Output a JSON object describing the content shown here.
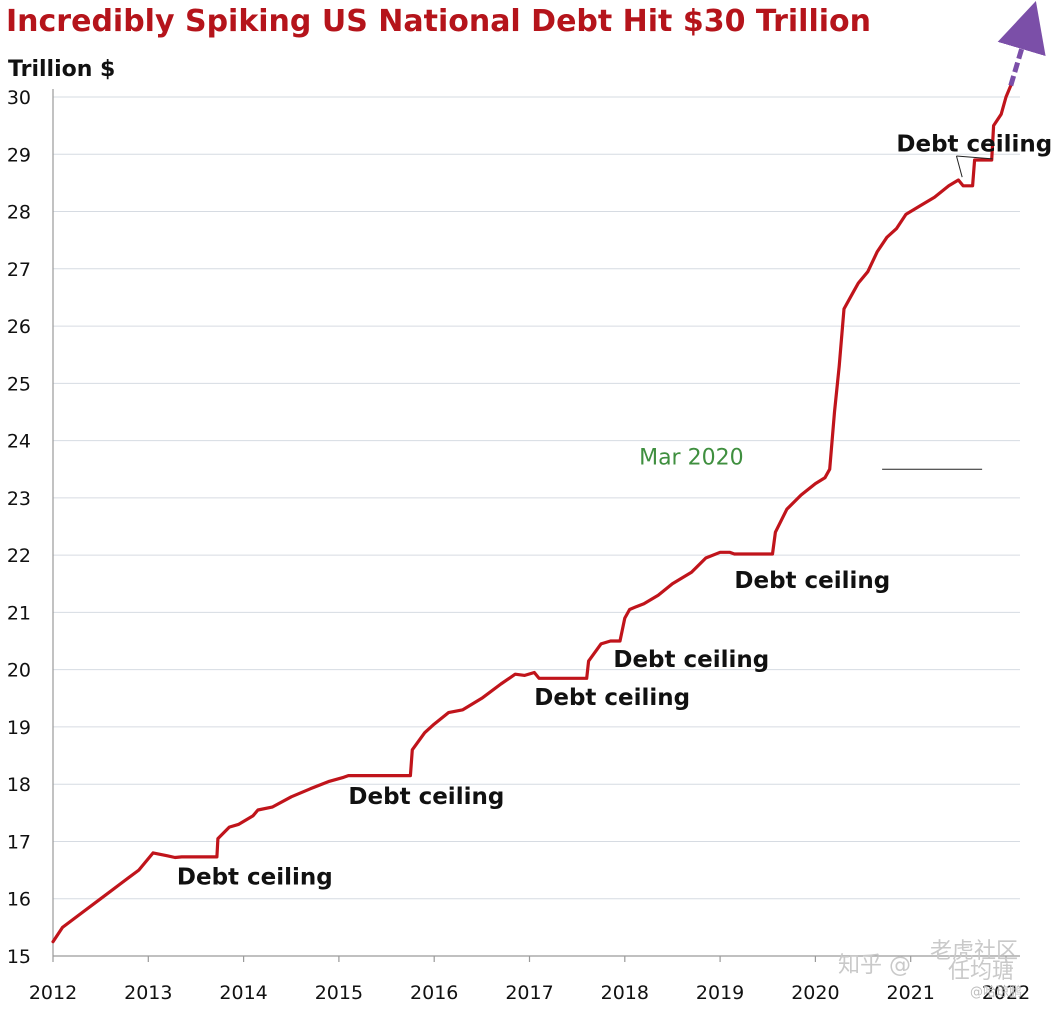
{
  "chart_data": {
    "type": "line",
    "title": "Incredibly Spiking US National Debt Hit $30 Trillion",
    "ylabel": "Trillion $",
    "xlabel": "",
    "ylim": [
      15,
      30
    ],
    "xlim": [
      2012,
      2022
    ],
    "y_ticks": [
      "15",
      "16",
      "17",
      "18",
      "19",
      "20",
      "21",
      "22",
      "23",
      "24",
      "25",
      "26",
      "27",
      "28",
      "29",
      "30"
    ],
    "x_ticks": [
      "2012",
      "2013",
      "2014",
      "2015",
      "2016",
      "2017",
      "2018",
      "2019",
      "2020",
      "2021",
      "2022"
    ],
    "grid": true,
    "line_color": "#c0141b",
    "series": [
      {
        "name": "US National Debt",
        "x": [
          2012.0,
          2012.1,
          2012.3,
          2012.5,
          2012.7,
          2012.9,
          2013.05,
          2013.2,
          2013.28,
          2013.35,
          2013.72,
          2013.73,
          2013.85,
          2013.95,
          2014.1,
          2014.15,
          2014.3,
          2014.5,
          2014.7,
          2014.9,
          2015.05,
          2015.1,
          2015.3,
          2015.5,
          2015.75,
          2015.77,
          2015.9,
          2016.0,
          2016.15,
          2016.3,
          2016.5,
          2016.7,
          2016.85,
          2016.95,
          2017.05,
          2017.1,
          2017.6,
          2017.62,
          2017.75,
          2017.85,
          2017.95,
          2018.0,
          2018.05,
          2018.12,
          2018.2,
          2018.35,
          2018.5,
          2018.7,
          2018.85,
          2019.0,
          2019.1,
          2019.15,
          2019.55,
          2019.58,
          2019.7,
          2019.85,
          2020.0,
          2020.1,
          2020.15,
          2020.2,
          2020.25,
          2020.3,
          2020.4,
          2020.45,
          2020.55,
          2020.65,
          2020.75,
          2020.85,
          2020.95,
          2021.1,
          2021.25,
          2021.4,
          2021.5,
          2021.55,
          2021.65,
          2021.67,
          2021.85,
          2021.87,
          2021.95,
          2022.0,
          2022.05
        ],
        "values": [
          15.25,
          15.5,
          15.75,
          16.0,
          16.25,
          16.5,
          16.8,
          16.75,
          16.72,
          16.73,
          16.73,
          17.05,
          17.25,
          17.3,
          17.45,
          17.55,
          17.6,
          17.78,
          17.92,
          18.05,
          18.12,
          18.15,
          18.15,
          18.15,
          18.15,
          18.6,
          18.9,
          19.05,
          19.25,
          19.3,
          19.5,
          19.75,
          19.92,
          19.9,
          19.95,
          19.85,
          19.85,
          20.15,
          20.45,
          20.5,
          20.5,
          20.9,
          21.05,
          21.1,
          21.15,
          21.3,
          21.5,
          21.7,
          21.95,
          22.05,
          22.05,
          22.02,
          22.02,
          22.4,
          22.8,
          23.05,
          23.25,
          23.35,
          23.5,
          24.5,
          25.3,
          26.3,
          26.6,
          26.75,
          26.95,
          27.3,
          27.55,
          27.7,
          27.95,
          28.1,
          28.25,
          28.45,
          28.55,
          28.45,
          28.45,
          28.9,
          28.9,
          29.5,
          29.7,
          30.0,
          30.2
        ]
      }
    ],
    "annotations": [
      {
        "text": "Debt ceiling",
        "x": 2013.3,
        "y": 16.25
      },
      {
        "text": "Debt ceiling",
        "x": 2015.1,
        "y": 17.65
      },
      {
        "text": "Debt ceiling",
        "x": 2017.05,
        "y": 19.38
      },
      {
        "text": "Debt ceiling",
        "x": 2017.88,
        "y": 20.05
      },
      {
        "text": "Debt ceiling",
        "x": 2019.15,
        "y": 21.43
      },
      {
        "text": "Debt ceiling",
        "x": 2020.85,
        "y": 29.05
      },
      {
        "text": "Mar 2020",
        "x": 2018.15,
        "y": 23.58
      }
    ],
    "watermark": {
      "line1": "知乎 @",
      "line2": "老虎社区",
      "line3": "任均瑭",
      "small": "@哈琼鹏"
    }
  }
}
